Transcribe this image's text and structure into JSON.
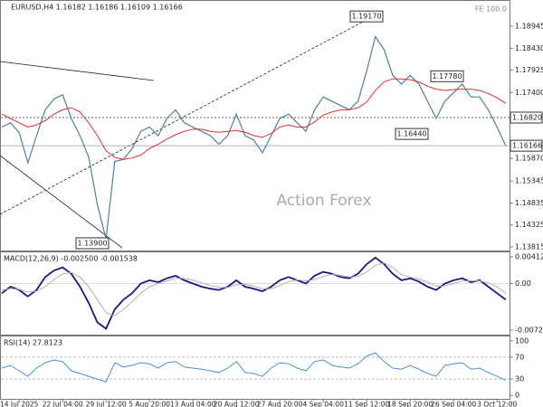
{
  "chart_data": [
    {
      "type": "line",
      "header": "EURUSD,H4 1.16182 1.16186 1.16109 1.16166",
      "watermark": "Action Forex",
      "note": "FE 100.0",
      "categories": [
        null,
        null,
        "14 Jul 2025",
        null,
        null,
        null,
        null,
        "22 Jul 04:00",
        null,
        null,
        null,
        null,
        "29 Jul 12:00",
        null,
        null,
        null,
        null,
        "5 Aug 20:00",
        null,
        null,
        null,
        null,
        "13 Aug 04:00",
        null,
        null,
        null,
        null,
        "20 Aug 12:00",
        null,
        null,
        null,
        null,
        "27 Aug 20:00",
        null,
        null,
        null,
        null,
        "4 Sep 04:00",
        null,
        null,
        null,
        null,
        "11 Sep 12:00",
        null,
        null,
        null,
        null,
        "18 Sep 20:00",
        null,
        null,
        null,
        null,
        "26 Sep 04:00",
        null,
        null,
        null,
        null,
        "3 Oct 12:00",
        null
      ],
      "series": [
        {
          "color": "#4f7f9c",
          "values": [
            1.166,
            1.167,
            1.1647,
            1.1577,
            1.164,
            1.17,
            1.1725,
            1.1735,
            1.168,
            1.164,
            1.159,
            1.148,
            1.14,
            1.158,
            1.1585,
            1.161,
            1.165,
            1.166,
            1.164,
            1.168,
            1.17,
            1.167,
            1.166,
            1.165,
            1.164,
            1.162,
            1.164,
            1.169,
            1.164,
            1.163,
            1.16,
            1.164,
            1.168,
            1.169,
            1.167,
            1.165,
            1.17,
            1.173,
            1.172,
            1.171,
            1.17,
            1.172,
            1.179,
            1.187,
            1.184,
            1.178,
            1.176,
            1.178,
            1.176,
            1.172,
            1.168,
            1.172,
            1.174,
            1.176,
            1.173,
            1.173,
            1.17,
            1.166,
            1.16166
          ]
        },
        {
          "color": "#e03030",
          "values": [
            1.169,
            1.168,
            1.167,
            1.166,
            1.1665,
            1.1675,
            1.169,
            1.17,
            1.1705,
            1.1695,
            1.167,
            1.164,
            1.1605,
            1.159,
            1.1585,
            1.1588,
            1.1595,
            1.161,
            1.162,
            1.1632,
            1.1642,
            1.165,
            1.1655,
            1.1655,
            1.165,
            1.1648,
            1.165,
            1.1652,
            1.1648,
            1.164,
            1.1636,
            1.1645,
            1.166,
            1.1665,
            1.166,
            1.166,
            1.1672,
            1.1688,
            1.1695,
            1.17,
            1.17,
            1.1705,
            1.1718,
            1.1745,
            1.1765,
            1.1772,
            1.1772,
            1.177,
            1.1765,
            1.1755,
            1.1748,
            1.1745,
            1.1747,
            1.1748,
            1.1748,
            1.1745,
            1.1738,
            1.1728,
            1.1715
          ]
        }
      ],
      "ylim": [
        1.13731,
        1.19531
      ],
      "yticks": [
        1.18945,
        {
          "value": 1.1843,
          "label": "1.18430"
        },
        1.17925,
        {
          "value": 1.174,
          "label": "1.17400"
        },
        {
          "value": 1.1587,
          "label": "1.15870"
        },
        1.15345,
        1.14835,
        1.14325,
        1.13815
      ],
      "levels": [
        {
          "value": 1.1682,
          "label": "1.16820",
          "style": "dotted"
        },
        {
          "value": 1.16166,
          "label": "1.16166",
          "style": "solid"
        }
      ],
      "annotations": [
        {
          "value": 1.1917,
          "label": "1.19170"
        },
        {
          "value": 1.1778,
          "label": "1.17780"
        },
        {
          "value": 1.1644,
          "label": "1.16440"
        },
        {
          "value": 1.139,
          "label": "1.13900"
        }
      ]
    },
    {
      "type": "line",
      "header": "MACD(12,26,9) -0.002500 -0.001538",
      "series": [
        {
          "color": "#1a1a80",
          "values": [
            -0.0015,
            -0.0005,
            -0.001,
            -0.002,
            -0.001,
            0.001,
            0.002,
            0.0025,
            0.0015,
            -0.0005,
            -0.003,
            -0.006,
            -0.007,
            -0.004,
            -0.0025,
            -0.0015,
            0,
            0.0005,
            0.0002,
            0.0008,
            0.0012,
            0.0005,
            0,
            -0.0005,
            -0.0008,
            -0.001,
            -0.0005,
            0.0005,
            -0.0005,
            -0.0008,
            -0.0012,
            -0.0005,
            0.0005,
            0.001,
            0.0005,
            0,
            0.0012,
            0.0018,
            0.0015,
            0.001,
            0.0008,
            0.0015,
            0.003,
            0.004,
            0.003,
            0.0015,
            0.0005,
            0.0008,
            0.0003,
            -0.0005,
            -0.001,
            0,
            0.0005,
            0.0008,
            0.0002,
            0.0005,
            -0.0005,
            -0.0015,
            -0.0025
          ]
        },
        {
          "color": "#b0b0b0",
          "values": [
            -0.001,
            -0.0008,
            -0.0009,
            -0.0013,
            -0.0012,
            -0.0005,
            0.0006,
            0.0015,
            0.0017,
            0.001,
            -0.0005,
            -0.0025,
            -0.0045,
            -0.005,
            -0.004,
            -0.0028,
            -0.0015,
            -0.0005,
            0,
            0.0004,
            0.0008,
            0.0008,
            0.0005,
            0.0001,
            -0.0003,
            -0.0006,
            -0.0006,
            -0.0002,
            -0.0001,
            -0.0004,
            -0.0008,
            -0.0008,
            -0.0003,
            0.0003,
            0.0006,
            0.0004,
            0.0006,
            0.0011,
            0.0014,
            0.0013,
            0.001,
            0.0011,
            0.0018,
            0.0028,
            0.0032,
            0.0025,
            0.0014,
            0.001,
            0.0007,
            0.0002,
            -0.0004,
            -0.0004,
            0,
            0.0004,
            0.0004,
            0.0004,
            0.0001,
            -0.0005,
            -0.001538
          ]
        }
      ],
      "ylim": [
        -0.007908,
        0.00482
      ],
      "yticks": [
        0.004128,
        {
          "value": 0,
          "label": "0.00"
        },
        -0.007216
      ]
    },
    {
      "type": "line",
      "header": "RSI(14) 27.8123",
      "series": [
        {
          "color": "#4a90d9",
          "values": [
            50,
            55,
            45,
            35,
            50,
            60,
            65,
            62,
            45,
            40,
            35,
            30,
            25,
            60,
            52,
            55,
            60,
            58,
            50,
            60,
            62,
            52,
            50,
            48,
            45,
            42,
            50,
            62,
            42,
            40,
            35,
            50,
            60,
            58,
            50,
            45,
            62,
            65,
            55,
            52,
            50,
            58,
            72,
            78,
            62,
            50,
            48,
            55,
            48,
            40,
            35,
            55,
            58,
            60,
            48,
            50,
            42,
            35,
            27.8123
          ]
        }
      ],
      "ylim": [
        -8,
        108
      ],
      "yticks": [
        100,
        70,
        30,
        0
      ],
      "grid": true
    }
  ]
}
